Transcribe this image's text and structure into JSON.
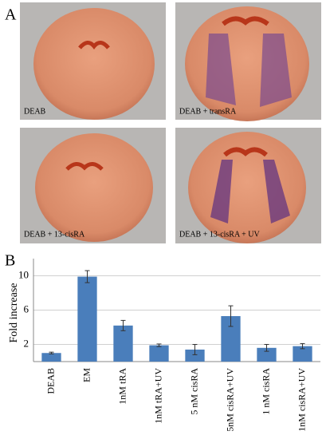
{
  "panel_a": {
    "label": "A",
    "captions": [
      "DEAB",
      "DEAB + transRA",
      "DEAB + 13-cisRA",
      "DEAB + 13-cisRA + UV"
    ]
  },
  "chart_data": {
    "type": "bar",
    "panel_label": "B",
    "y_label": "Fold increase",
    "categories": [
      "DEAB",
      "EM",
      "1nM tRA",
      "1nM tRA+UV",
      "5 nM cisRA",
      "5nM cisRA+UV",
      "1 nM cisRA",
      "1nM cisRA+UV"
    ],
    "values": [
      1.0,
      9.9,
      4.2,
      1.9,
      1.4,
      5.3,
      1.6,
      1.8
    ],
    "errors": [
      0.1,
      0.7,
      0.6,
      0.15,
      0.6,
      1.2,
      0.4,
      0.3
    ],
    "color": "#4a7ebb",
    "ylim": [
      0,
      12
    ],
    "yticks": [
      2,
      6,
      10
    ],
    "grid": true
  }
}
